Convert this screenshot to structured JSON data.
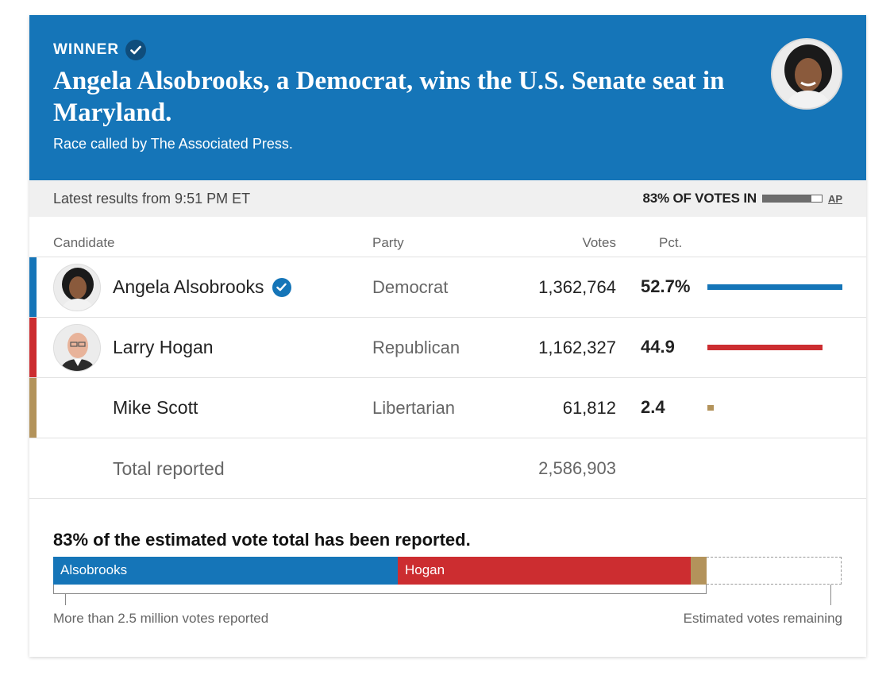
{
  "header": {
    "winner_label": "WINNER",
    "headline": "Angela Alsobrooks, a Democrat, wins the U.S. Senate seat in Maryland.",
    "called_by": "Race called by The Associated Press."
  },
  "meta": {
    "latest": "Latest results from 9:51 PM ET",
    "votes_in_label": "83% OF VOTES IN",
    "votes_in_fraction": 0.83,
    "source": "AP"
  },
  "table": {
    "headers": {
      "candidate": "Candidate",
      "party": "Party",
      "votes": "Votes",
      "pct": "Pct."
    },
    "rows": [
      {
        "name": "Angela Alsobrooks",
        "party": "Democrat",
        "votes": "1,362,764",
        "pct": "52.7%",
        "pct_value": 52.7,
        "color": "#1575b8",
        "winner": true
      },
      {
        "name": "Larry Hogan",
        "party": "Republican",
        "votes": "1,162,327",
        "pct": "44.9",
        "pct_value": 44.9,
        "color": "#cc2d30",
        "winner": false
      },
      {
        "name": "Mike Scott",
        "party": "Libertarian",
        "votes": "61,812",
        "pct": "2.4",
        "pct_value": 2.4,
        "color": "#b3935b",
        "winner": false
      }
    ],
    "total_label": "Total reported",
    "total_votes": "2,586,903"
  },
  "bottom": {
    "title": "83% of the estimated vote total has been reported.",
    "segments": [
      {
        "label": "Alsobrooks",
        "share": 0.437,
        "color": "#1575b8"
      },
      {
        "label": "Hogan",
        "share": 0.372,
        "color": "#cc2d30"
      },
      {
        "label": "",
        "share": 0.02,
        "color": "#b3935b"
      }
    ],
    "left_caption": "More than 2.5 million votes reported",
    "right_caption": "Estimated votes remaining"
  }
}
